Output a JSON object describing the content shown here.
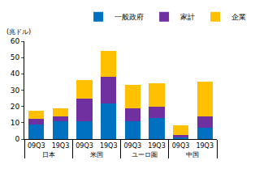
{
  "chart_data": {
    "type": "bar",
    "stacked": true,
    "ylabel": "(兆ドル)",
    "categories": [
      [
        "日本",
        "09Q3"
      ],
      [
        "日本",
        "19Q3"
      ],
      [
        "米国",
        "09Q3"
      ],
      [
        "米国",
        "19Q3"
      ],
      [
        "ユーロ圏",
        "09Q3"
      ],
      [
        "ユーロ圏",
        "19Q3"
      ],
      [
        "中国",
        "09Q3"
      ],
      [
        "中国",
        "19Q3"
      ]
    ],
    "series": [
      {
        "name": "一般政府",
        "color": "#0070C0",
        "values": [
          9,
          11,
          11,
          22,
          11,
          13,
          1,
          7
        ]
      },
      {
        "name": "家計",
        "color": "#7030A0",
        "values": [
          3.5,
          3,
          14,
          16,
          8,
          7,
          1.5,
          7
        ]
      },
      {
        "name": "企業",
        "color": "#FFC000",
        "values": [
          5,
          5,
          11,
          16,
          14,
          14,
          6,
          21
        ]
      }
    ],
    "ylim": [
      0,
      60
    ],
    "yticks": [
      0,
      10,
      20,
      30,
      40,
      50,
      60
    ],
    "grid": false,
    "legend": "top"
  }
}
